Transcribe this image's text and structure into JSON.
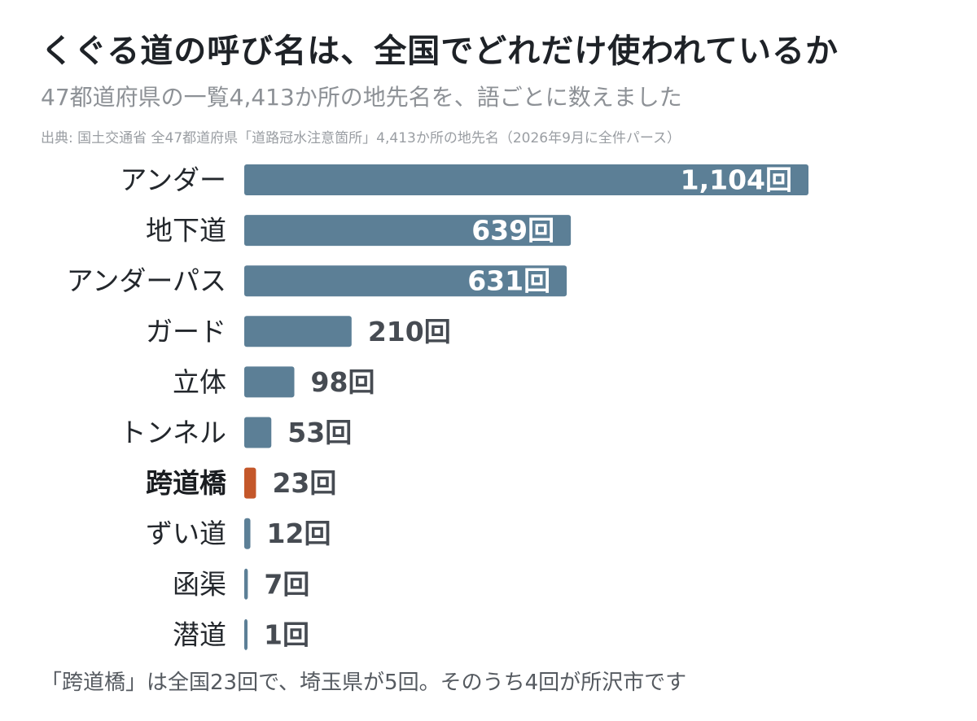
{
  "header": {
    "title": "くぐる道の呼び名は、全国でどれだけ使われているか",
    "subtitle": "47都道府県の一覧4,413か所の地先名を、語ごとに数えました",
    "source": "出典: 国土交通省 全47都道府県「道路冠水注意箇所」4,413か所の地先名（2026年9月に全件パース）"
  },
  "footnote": "「跨道橋」は全国23回で、埼玉県が5回。そのうち4回が所沢市です",
  "colors": {
    "bar": "#5c7f96",
    "highlight": "#c4572a",
    "value_text_outside": "#464b52",
    "value_text_inside": "#ffffff"
  },
  "chart_data": {
    "type": "bar",
    "orientation": "horizontal",
    "categories": [
      "アンダー",
      "地下道",
      "アンダーパス",
      "ガード",
      "立体",
      "トンネル",
      "跨道橋",
      "ずい道",
      "函渠",
      "潜道"
    ],
    "values": [
      1104,
      639,
      631,
      210,
      98,
      53,
      23,
      12,
      7,
      1
    ],
    "value_labels": [
      "1,104回",
      "639回",
      "631回",
      "210回",
      "98回",
      "53回",
      "23回",
      "12回",
      "7回",
      "1回"
    ],
    "highlight": "跨道橋",
    "title": "くぐる道の呼び名は、全国でどれだけ使われているか",
    "xlabel": "",
    "ylabel": "",
    "xlim": [
      0,
      1104
    ],
    "grid": false,
    "legend": "none"
  }
}
